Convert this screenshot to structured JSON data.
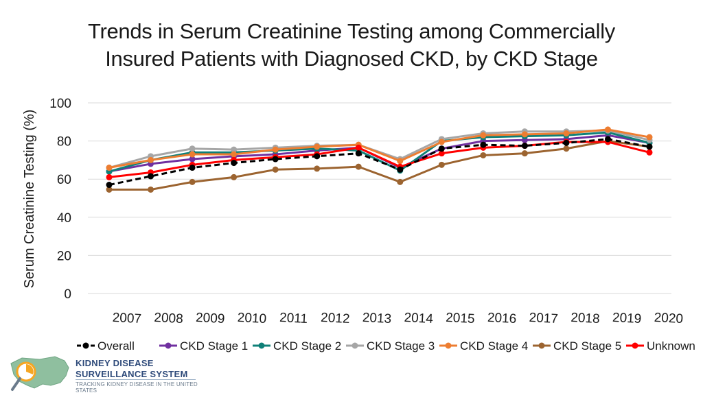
{
  "chart_data": {
    "type": "line",
    "title_line1": "Trends in Serum Creatinine Testing among Commercially",
    "title_line2": "Insured Patients with Diagnosed CKD, by CKD Stage",
    "ylabel": "Serum Creatinine Testing (%)",
    "xlabel": "",
    "ylim": [
      0,
      100
    ],
    "yticks": [
      0,
      20,
      40,
      60,
      80,
      100
    ],
    "categories": [
      "2007",
      "2008",
      "2009",
      "2010",
      "2011",
      "2012",
      "2013",
      "2014",
      "2015",
      "2016",
      "2017",
      "2018",
      "2019",
      "2020"
    ],
    "grid": true,
    "legend": "bottom",
    "series": [
      {
        "name": "Overall",
        "color": "#000000",
        "dashed": true,
        "values": [
          57,
          61.5,
          66,
          68.5,
          70.5,
          72,
          73.5,
          65,
          76,
          78,
          77.5,
          79,
          81,
          77
        ]
      },
      {
        "name": "CKD Stage 1",
        "color": "#7030a0",
        "dashed": false,
        "values": [
          64,
          68,
          70.5,
          72,
          73,
          75,
          76.5,
          66,
          76,
          80,
          80.5,
          81,
          83,
          79
        ]
      },
      {
        "name": "CKD Stage 2",
        "color": "#0f8078",
        "dashed": false,
        "values": [
          64,
          70,
          74,
          74,
          75,
          76,
          75,
          64.5,
          80,
          82,
          82.5,
          83,
          84.5,
          79
        ]
      },
      {
        "name": "CKD Stage 3",
        "color": "#a6a6a6",
        "dashed": false,
        "values": [
          66,
          72,
          76,
          75.5,
          76.5,
          77.5,
          78,
          70.5,
          81,
          84,
          85,
          85,
          85.5,
          80.5
        ]
      },
      {
        "name": "CKD Stage 4",
        "color": "#ed7d31",
        "dashed": false,
        "values": [
          66,
          70,
          73,
          73,
          75.5,
          77,
          78,
          69.5,
          79.5,
          83,
          83.5,
          84,
          86,
          82
        ]
      },
      {
        "name": "CKD Stage 5",
        "color": "#9c6430",
        "dashed": false,
        "values": [
          54.5,
          54.5,
          58.5,
          61,
          65,
          65.5,
          66.5,
          58.5,
          67.5,
          72.5,
          73.5,
          76,
          80,
          77
        ]
      },
      {
        "name": "Unknown",
        "color": "#ff0000",
        "dashed": false,
        "values": [
          61,
          63.5,
          67.5,
          70,
          71.5,
          73,
          76.5,
          66.5,
          73.5,
          76.5,
          77.5,
          79.5,
          79.5,
          74
        ]
      }
    ]
  },
  "logo": {
    "line1": "KIDNEY DISEASE",
    "line2": "SURVEILLANCE SYSTEM",
    "line3": "TRACKING KIDNEY DISEASE IN THE UNITED STATES"
  },
  "colors": {
    "grid": "#d9d9d9",
    "axis_text": "#1a1a1a",
    "logo_blue": "#2e4a7a",
    "logo_green": "#8fbf9f",
    "logo_orange": "#f5a623"
  }
}
